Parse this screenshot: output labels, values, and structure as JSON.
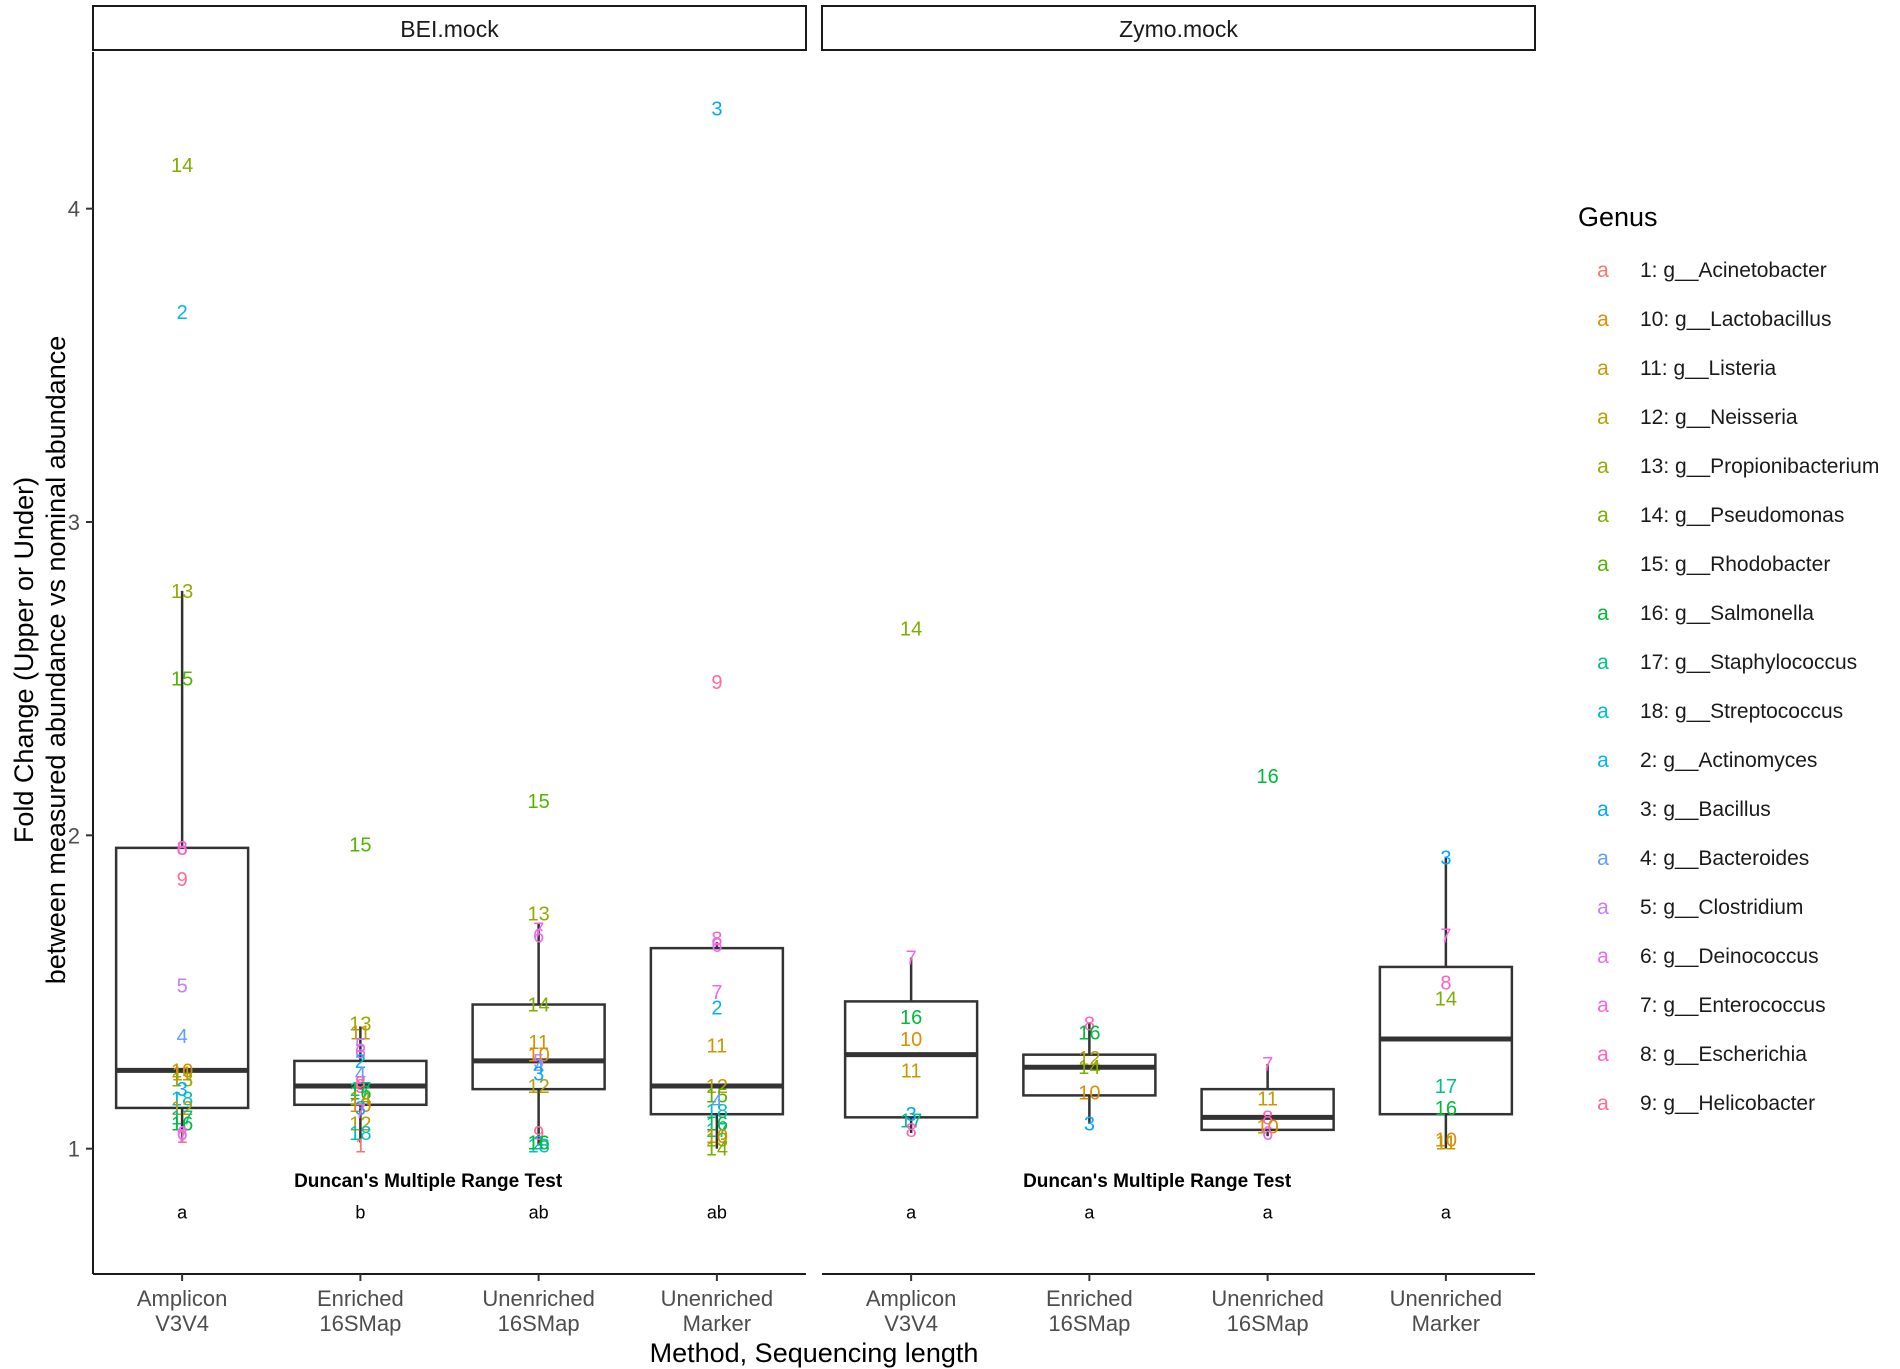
{
  "chart_data": {
    "type": "boxplot",
    "xlabel": "Method, Sequencing length",
    "ylabel_lines": [
      "Fold Change (Upper or Under)",
      "between measured abundance vs nominal abundance"
    ],
    "ylim": [
      0.6,
      4.5
    ],
    "yticks": [
      1,
      2,
      3,
      4
    ],
    "categories": [
      [
        "Amplicon",
        "V3V4"
      ],
      [
        "Enriched",
        "16SMap"
      ],
      [
        "Unenriched",
        "16SMap"
      ],
      [
        "Unenriched",
        "Marker"
      ]
    ],
    "annotation_title": "Duncan's Multiple Range Test",
    "legend": {
      "title": "Genus",
      "key_glyph": "a",
      "items": [
        {
          "label": "1: g__Acinetobacter",
          "color": "#F8766D"
        },
        {
          "label": "10: g__Lactobacillus",
          "color": "#DE8C00"
        },
        {
          "label": "11: g__Listeria",
          "color": "#C49A00"
        },
        {
          "label": "12: g__Neisseria",
          "color": "#B79F00"
        },
        {
          "label": "13: g__Propionibacterium",
          "color": "#99A800"
        },
        {
          "label": "14: g__Pseudomonas",
          "color": "#7CAE00"
        },
        {
          "label": "15: g__Rhodobacter",
          "color": "#53B400"
        },
        {
          "label": "16: g__Salmonella",
          "color": "#00BA38"
        },
        {
          "label": "17: g__Staphylococcus",
          "color": "#00C08B"
        },
        {
          "label": "18: g__Streptococcus",
          "color": "#00BFC4"
        },
        {
          "label": "2: g__Actinomyces",
          "color": "#00B4F0"
        },
        {
          "label": "3: g__Bacillus",
          "color": "#00A9FF"
        },
        {
          "label": "4: g__Bacteroides",
          "color": "#619CFF"
        },
        {
          "label": "5: g__Clostridium",
          "color": "#C77CFF"
        },
        {
          "label": "6: g__Deinococcus",
          "color": "#E76BF3"
        },
        {
          "label": "7: g__Enterococcus",
          "color": "#F564E3"
        },
        {
          "label": "8: g__Escherichia",
          "color": "#FF61C3"
        },
        {
          "label": "9: g__Helicobacter",
          "color": "#FF6C91"
        }
      ]
    },
    "panels": [
      {
        "name": "BEI.mock",
        "groups": [
          {
            "method": "Amplicon V3V4",
            "letter": "a",
            "box": {
              "q1": 1.13,
              "median": 1.25,
              "q3": 1.96,
              "whisker_low": 1.02,
              "whisker_high": 2.78
            },
            "points": [
              [
                "14",
                4.14
              ],
              [
                "2",
                3.67
              ],
              [
                "13",
                2.78
              ],
              [
                "15",
                2.5
              ],
              [
                "6",
                1.96
              ],
              [
                "8",
                1.96
              ],
              [
                "9",
                1.86
              ],
              [
                "5",
                1.52
              ],
              [
                "4",
                1.36
              ],
              [
                "10",
                1.25
              ],
              [
                "11",
                1.24
              ],
              [
                "13",
                1.22
              ],
              [
                "3",
                1.19
              ],
              [
                "18",
                1.16
              ],
              [
                "12",
                1.13
              ],
              [
                "17",
                1.1
              ],
              [
                "16",
                1.08
              ],
              [
                "1",
                1.04
              ],
              [
                "6",
                1.05
              ],
              [
                "7",
                1.04
              ]
            ]
          },
          {
            "method": "Enriched 16SMap",
            "letter": "b",
            "box": {
              "q1": 1.14,
              "median": 1.2,
              "q3": 1.28,
              "whisker_low": 1.02,
              "whisker_high": 1.39
            },
            "points": [
              [
                "15",
                1.97
              ],
              [
                "13",
                1.4
              ],
              [
                "11",
                1.37
              ],
              [
                "5",
                1.33
              ],
              [
                "6",
                1.31
              ],
              [
                "2",
                1.28
              ],
              [
                "4",
                1.24
              ],
              [
                "8",
                1.21
              ],
              [
                "9",
                1.2
              ],
              [
                "17",
                1.19
              ],
              [
                "16",
                1.18
              ],
              [
                "14",
                1.16
              ],
              [
                "10",
                1.14
              ],
              [
                "3",
                1.13
              ],
              [
                "7",
                1.12
              ],
              [
                "12",
                1.08
              ],
              [
                "18",
                1.05
              ],
              [
                "1",
                1.01
              ]
            ]
          },
          {
            "method": "Unenriched 16SMap",
            "letter": "ab",
            "box": {
              "q1": 1.19,
              "median": 1.28,
              "q3": 1.46,
              "whisker_low": 1.01,
              "whisker_high": 1.72
            },
            "points": [
              [
                "15",
                2.11
              ],
              [
                "13",
                1.75
              ],
              [
                "7",
                1.7
              ],
              [
                "6",
                1.68
              ],
              [
                "14",
                1.46
              ],
              [
                "11",
                1.34
              ],
              [
                "10",
                1.3
              ],
              [
                "5",
                1.28
              ],
              [
                "4",
                1.26
              ],
              [
                "3",
                1.24
              ],
              [
                "12",
                1.2
              ],
              [
                "9",
                1.05
              ],
              [
                "2",
                1.02
              ],
              [
                "18",
                1.01
              ],
              [
                "16",
                1.02
              ]
            ]
          },
          {
            "method": "Unenriched Marker",
            "letter": "ab",
            "box": {
              "q1": 1.11,
              "median": 1.2,
              "q3": 1.64,
              "whisker_low": 1.0,
              "whisker_high": 1.66
            },
            "points": [
              [
                "3",
                4.32
              ],
              [
                "9",
                2.49
              ],
              [
                "8",
                1.67
              ],
              [
                "6",
                1.65
              ],
              [
                "7",
                1.5
              ],
              [
                "2",
                1.45
              ],
              [
                "11",
                1.33
              ],
              [
                "12",
                1.2
              ],
              [
                "15",
                1.17
              ],
              [
                "4",
                1.15
              ],
              [
                "18",
                1.12
              ],
              [
                "16",
                1.08
              ],
              [
                "17",
                1.06
              ],
              [
                "10",
                1.04
              ],
              [
                "13",
                1.03
              ],
              [
                "14",
                1.0
              ]
            ]
          }
        ]
      },
      {
        "name": "Zymo.mock",
        "groups": [
          {
            "method": "Amplicon V3V4",
            "letter": "a",
            "box": {
              "q1": 1.1,
              "median": 1.3,
              "q3": 1.47,
              "whisker_low": 1.05,
              "whisker_high": 1.61
            },
            "points": [
              [
                "14",
                2.66
              ],
              [
                "7",
                1.61
              ],
              [
                "16",
                1.42
              ],
              [
                "10",
                1.35
              ],
              [
                "11",
                1.25
              ],
              [
                "3",
                1.11
              ],
              [
                "17",
                1.09
              ],
              [
                "8",
                1.06
              ]
            ]
          },
          {
            "method": "Enriched 16SMap",
            "letter": "a",
            "box": {
              "q1": 1.17,
              "median": 1.26,
              "q3": 1.3,
              "whisker_low": 1.08,
              "whisker_high": 1.4
            },
            "points": [
              [
                "8",
                1.4
              ],
              [
                "16",
                1.37
              ],
              [
                "12",
                1.29
              ],
              [
                "14",
                1.26
              ],
              [
                "10",
                1.18
              ],
              [
                "3",
                1.08
              ]
            ]
          },
          {
            "method": "Unenriched 16SMap",
            "letter": "a",
            "box": {
              "q1": 1.06,
              "median": 1.1,
              "q3": 1.19,
              "whisker_low": 1.04,
              "whisker_high": 1.27
            },
            "points": [
              [
                "16",
                2.19
              ],
              [
                "7",
                1.27
              ],
              [
                "11",
                1.16
              ],
              [
                "8",
                1.1
              ],
              [
                "10",
                1.07
              ],
              [
                "6",
                1.05
              ]
            ]
          },
          {
            "method": "Unenriched Marker",
            "letter": "a",
            "box": {
              "q1": 1.11,
              "median": 1.35,
              "q3": 1.58,
              "whisker_low": 1.0,
              "whisker_high": 1.93
            },
            "points": [
              [
                "3",
                1.93
              ],
              [
                "7",
                1.68
              ],
              [
                "8",
                1.53
              ],
              [
                "14",
                1.48
              ],
              [
                "17",
                1.2
              ],
              [
                "16",
                1.13
              ],
              [
                "10",
                1.03
              ],
              [
                "11",
                1.02
              ]
            ]
          }
        ]
      }
    ]
  }
}
